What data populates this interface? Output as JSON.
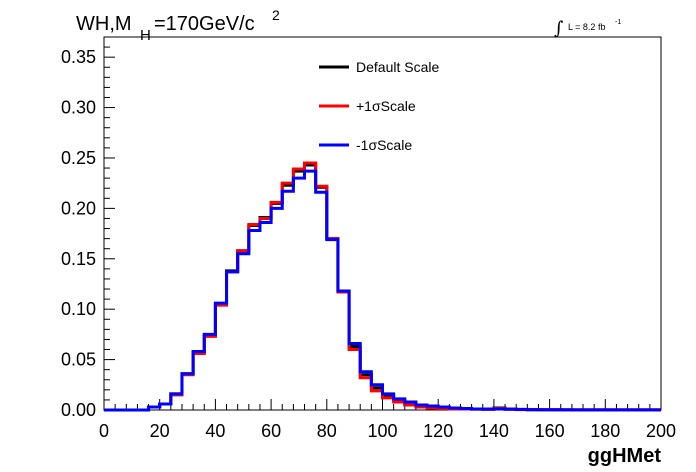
{
  "chart_data": {
    "type": "line",
    "title": {
      "main": "WH,M",
      "sub": "H",
      "rest": "=170GeV/c",
      "sup": "2"
    },
    "lumi": {
      "symbol": "∫",
      "text": "L = 8.2 fb",
      "sup": "-1"
    },
    "xlabel": "ggHMet",
    "ylabel": "",
    "xlim": [
      0,
      200
    ],
    "ylim": [
      0,
      0.37
    ],
    "xticks": [
      "0",
      "20",
      "40",
      "60",
      "80",
      "100",
      "120",
      "140",
      "160",
      "180",
      "200"
    ],
    "yticks": [
      "0.00",
      "0.05",
      "0.10",
      "0.15",
      "0.20",
      "0.25",
      "0.30",
      "0.35"
    ],
    "grid": false,
    "legend_position": "top-center",
    "bin_width": 4,
    "series": [
      {
        "name": "Default Scale",
        "color": "#000000",
        "values": [
          0,
          0,
          0,
          0,
          0.003,
          0.006,
          0.016,
          0.036,
          0.057,
          0.074,
          0.105,
          0.138,
          0.158,
          0.183,
          0.191,
          0.205,
          0.223,
          0.237,
          0.243,
          0.221,
          0.17,
          0.118,
          0.063,
          0.035,
          0.022,
          0.014,
          0.01,
          0.006,
          0.004,
          0.003,
          0.002,
          0.0015,
          0.001,
          0.001,
          0.0008,
          0.002,
          0.001,
          0.0005,
          0.0003,
          0.0002,
          0.0002,
          0.0001,
          0.0001,
          0.0001,
          0.0001,
          0.0001,
          0.0001,
          0.0001,
          0.0001,
          0.0001
        ]
      },
      {
        "name": "+1σScale",
        "color": "#ff0000",
        "values": [
          0,
          0,
          0,
          0,
          0.003,
          0.006,
          0.015,
          0.035,
          0.056,
          0.073,
          0.104,
          0.137,
          0.158,
          0.184,
          0.19,
          0.206,
          0.225,
          0.239,
          0.245,
          0.222,
          0.17,
          0.117,
          0.06,
          0.032,
          0.019,
          0.012,
          0.008,
          0.005,
          0.003,
          0.002,
          0.0015,
          0.001,
          0.001,
          0.0008,
          0.0006,
          0.0015,
          0.0008,
          0.0004,
          0.0003,
          0.0002,
          0.0001,
          0.0001,
          0.0001,
          0.0001,
          0.0001,
          0.0001,
          0.0001,
          0.0001,
          0.0001,
          0.0001
        ]
      },
      {
        "name": "-1σScale",
        "color": "#0000ff",
        "values": [
          0,
          0,
          0,
          0,
          0.003,
          0.006,
          0.016,
          0.036,
          0.058,
          0.075,
          0.106,
          0.137,
          0.155,
          0.178,
          0.186,
          0.2,
          0.217,
          0.23,
          0.237,
          0.216,
          0.169,
          0.118,
          0.066,
          0.038,
          0.025,
          0.016,
          0.011,
          0.008,
          0.005,
          0.004,
          0.003,
          0.002,
          0.0015,
          0.001,
          0.001,
          0.001,
          0.0008,
          0.0006,
          0.0004,
          0.0003,
          0.0002,
          0.0002,
          0.0001,
          0.0001,
          0.0001,
          0.0001,
          0.0001,
          0.0001,
          0.0001,
          0.0001
        ]
      }
    ]
  }
}
